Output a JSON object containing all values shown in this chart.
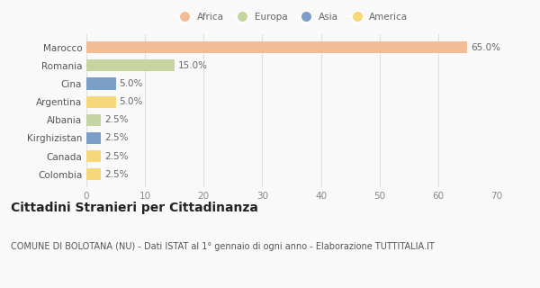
{
  "categories": [
    "Marocco",
    "Romania",
    "Cina",
    "Argentina",
    "Albania",
    "Kirghizistan",
    "Canada",
    "Colombia"
  ],
  "values": [
    65.0,
    15.0,
    5.0,
    5.0,
    2.5,
    2.5,
    2.5,
    2.5
  ],
  "continents": [
    "Africa",
    "Europa",
    "Asia",
    "America",
    "Europa",
    "Asia",
    "America",
    "America"
  ],
  "colors": {
    "Africa": "#F2BC96",
    "Europa": "#C5D4A0",
    "Asia": "#7B9EC9",
    "America": "#F5D87A"
  },
  "legend_order": [
    "Africa",
    "Europa",
    "Asia",
    "America"
  ],
  "xlim": [
    0,
    70
  ],
  "xticks": [
    0,
    10,
    20,
    30,
    40,
    50,
    60,
    70
  ],
  "title": "Cittadini Stranieri per Cittadinanza",
  "subtitle": "COMUNE DI BOLOTANA (NU) - Dati ISTAT al 1° gennaio di ogni anno - Elaborazione TUTTITALIA.IT",
  "bg_color": "#f9f9f9",
  "grid_color": "#e0e0e0",
  "label_fontsize": 7.5,
  "value_fontsize": 7.5,
  "title_fontsize": 10,
  "subtitle_fontsize": 7
}
